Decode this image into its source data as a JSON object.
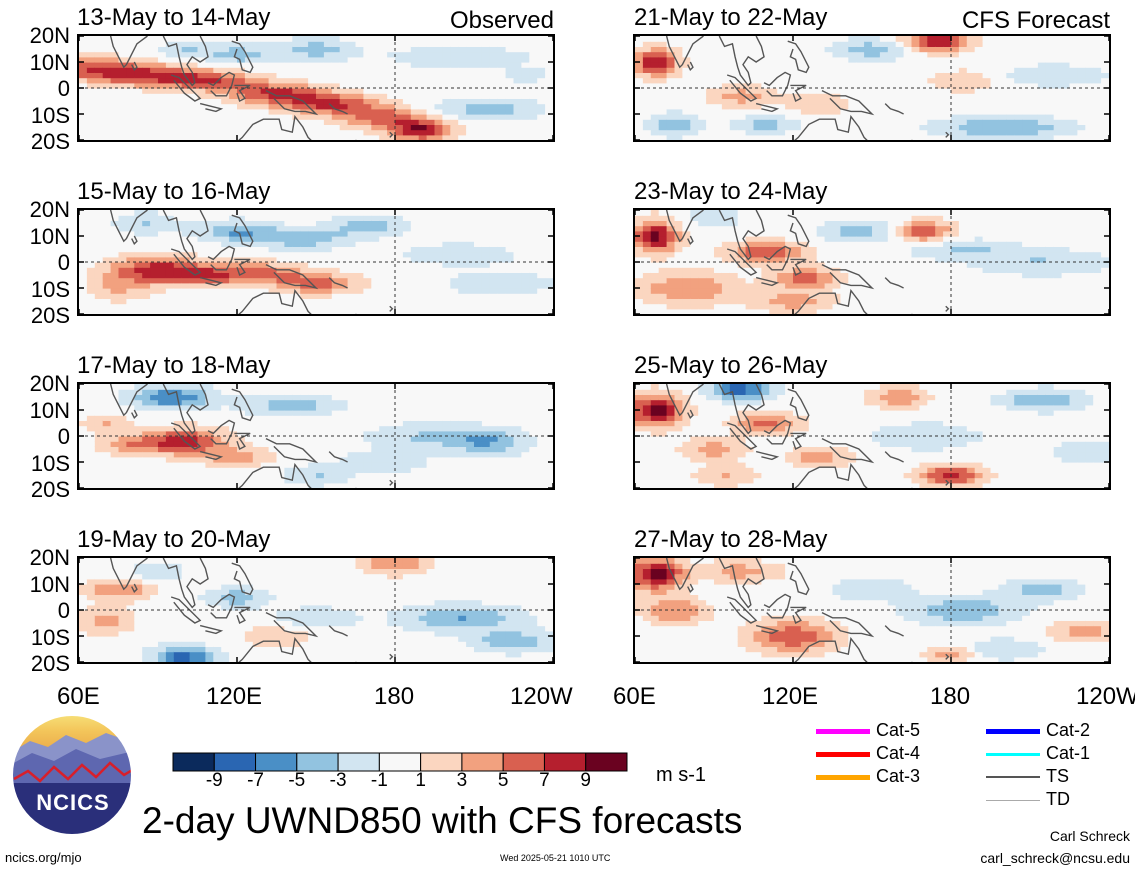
{
  "panel_titles": [
    "13-May to 14-May",
    "21-May to 22-May",
    "15-May to 16-May",
    "23-May to 24-May",
    "17-May to 18-May",
    "25-May to 26-May",
    "19-May to 20-May",
    "27-May to 28-May"
  ],
  "labels": {
    "observed": "Observed",
    "forecast": "CFS Forecast"
  },
  "main_title": "2-day UWND850 with CFS forecasts",
  "units": "m s-1",
  "url": "ncics.org/mjo",
  "timestamp": "Wed 2025-05-21 1010 UTC",
  "author": "Carl Schreck",
  "email": "carl_schreck@ncsu.edu",
  "logo_text": "NCICS",
  "legend": [
    {
      "label": "Cat-5",
      "color": "#ff00ff"
    },
    {
      "label": "Cat-4",
      "color": "#ff0000"
    },
    {
      "label": "Cat-3",
      "color": "#ffa500"
    },
    {
      "label": "Cat-2",
      "color": "#0000ff"
    },
    {
      "label": "Cat-1",
      "color": "#00ffff"
    },
    {
      "label": "TS",
      "color": "#555555"
    },
    {
      "label": "TD",
      "color": "#aaaaaa"
    }
  ],
  "chart_data": {
    "type": "heatmap",
    "variable": "UWND850",
    "y_tick_labels": [
      "20N",
      "10N",
      "0",
      "10S",
      "20S"
    ],
    "x_tick_labels": [
      "60E",
      "120E",
      "180",
      "120W"
    ],
    "xlim": [
      60,
      240
    ],
    "ylim": [
      -20,
      20
    ],
    "colorbar": {
      "ticks": [
        "-9",
        "-7",
        "-5",
        "-3",
        "-1",
        "1",
        "3",
        "5",
        "7",
        "9"
      ],
      "colors": [
        "#0b2a5c",
        "#2a66b2",
        "#4a8fc6",
        "#92c3e0",
        "#d2e5f1",
        "#f8f8f8",
        "#fbd6c0",
        "#f2a17f",
        "#d96050",
        "#b51f2e",
        "#6a0220"
      ]
    },
    "panels": [
      {
        "period": "13-May to 14-May",
        "source": "Observed",
        "blobs": [
          [
            65,
            8,
            18,
            4,
            6
          ],
          [
            85,
            5,
            20,
            4,
            7
          ],
          [
            110,
            3,
            18,
            4,
            6
          ],
          [
            135,
            -2,
            18,
            4,
            7
          ],
          [
            155,
            -6,
            18,
            4,
            7
          ],
          [
            175,
            -11,
            16,
            4,
            6
          ],
          [
            190,
            -16,
            12,
            4,
            9
          ],
          [
            120,
            13,
            12,
            4,
            -4
          ],
          [
            100,
            15,
            10,
            3,
            -3
          ],
          [
            150,
            15,
            15,
            4,
            -4
          ],
          [
            205,
            12,
            25,
            4,
            -3
          ],
          [
            215,
            -8,
            20,
            4,
            -4
          ],
          [
            230,
            5,
            10,
            3,
            -2
          ]
        ]
      },
      {
        "period": "15-May to 16-May",
        "source": "Observed",
        "blobs": [
          [
            90,
            -3,
            18,
            5,
            8
          ],
          [
            110,
            -5,
            15,
            4,
            5
          ],
          [
            130,
            -4,
            15,
            4,
            5
          ],
          [
            150,
            -8,
            15,
            4,
            6
          ],
          [
            75,
            -10,
            12,
            5,
            3
          ],
          [
            120,
            12,
            15,
            4,
            -5
          ],
          [
            145,
            9,
            18,
            4,
            -4
          ],
          [
            170,
            14,
            15,
            4,
            -4
          ],
          [
            205,
            3,
            20,
            4,
            -3
          ],
          [
            220,
            -8,
            20,
            4,
            -3
          ],
          [
            85,
            15,
            12,
            4,
            -3
          ]
        ]
      },
      {
        "period": "17-May to 18-May",
        "source": "Observed",
        "blobs": [
          [
            100,
            -2,
            15,
            5,
            8
          ],
          [
            80,
            -3,
            12,
            4,
            4
          ],
          [
            120,
            -8,
            12,
            4,
            4
          ],
          [
            95,
            15,
            15,
            4,
            -7
          ],
          [
            140,
            12,
            18,
            4,
            -4
          ],
          [
            190,
            0,
            20,
            5,
            -3
          ],
          [
            215,
            -2,
            15,
            5,
            -5
          ],
          [
            175,
            -10,
            15,
            4,
            -3
          ],
          [
            150,
            -15,
            12,
            4,
            -3
          ],
          [
            70,
            5,
            10,
            3,
            3
          ]
        ]
      },
      {
        "period": "19-May to 20-May",
        "source": "Observed",
        "blobs": [
          [
            75,
            8,
            12,
            4,
            5
          ],
          [
            70,
            -4,
            10,
            5,
            4
          ],
          [
            100,
            -18,
            12,
            4,
            -8
          ],
          [
            120,
            5,
            12,
            4,
            -4
          ],
          [
            150,
            -3,
            15,
            4,
            -3
          ],
          [
            180,
            18,
            12,
            4,
            5
          ],
          [
            205,
            -3,
            22,
            5,
            -5
          ],
          [
            225,
            -12,
            15,
            4,
            -5
          ],
          [
            135,
            -10,
            12,
            4,
            3
          ],
          [
            90,
            15,
            10,
            3,
            -3
          ]
        ]
      },
      {
        "period": "21-May to 22-May",
        "source": "CFS Forecast",
        "blobs": [
          [
            68,
            10,
            8,
            5,
            9
          ],
          [
            100,
            -3,
            12,
            4,
            4
          ],
          [
            130,
            -6,
            12,
            4,
            3
          ],
          [
            175,
            18,
            12,
            4,
            9
          ],
          [
            75,
            -14,
            10,
            4,
            -5
          ],
          [
            110,
            -14,
            12,
            3,
            -4
          ],
          [
            150,
            15,
            15,
            4,
            -4
          ],
          [
            200,
            -15,
            25,
            4,
            -5
          ],
          [
            220,
            5,
            20,
            4,
            -3
          ],
          [
            185,
            3,
            12,
            4,
            3
          ]
        ]
      },
      {
        "period": "23-May to 24-May",
        "source": "CFS Forecast",
        "blobs": [
          [
            68,
            10,
            8,
            6,
            10
          ],
          [
            110,
            4,
            14,
            4,
            7
          ],
          [
            125,
            -6,
            12,
            4,
            6
          ],
          [
            80,
            -10,
            18,
            6,
            5
          ],
          [
            170,
            12,
            10,
            4,
            7
          ],
          [
            120,
            -15,
            15,
            4,
            4
          ],
          [
            145,
            12,
            15,
            4,
            -4
          ],
          [
            185,
            5,
            20,
            4,
            -3
          ],
          [
            215,
            0,
            25,
            5,
            -3
          ],
          [
            90,
            17,
            10,
            3,
            -3
          ]
        ]
      },
      {
        "period": "25-May to 26-May",
        "source": "CFS Forecast",
        "blobs": [
          [
            68,
            10,
            10,
            6,
            10
          ],
          [
            100,
            18,
            12,
            4,
            -8
          ],
          [
            110,
            5,
            12,
            4,
            6
          ],
          [
            90,
            -5,
            12,
            4,
            4
          ],
          [
            130,
            -8,
            12,
            4,
            4
          ],
          [
            160,
            15,
            10,
            4,
            5
          ],
          [
            180,
            -15,
            12,
            4,
            8
          ],
          [
            215,
            14,
            15,
            4,
            -5
          ],
          [
            170,
            0,
            20,
            5,
            -3
          ],
          [
            230,
            -6,
            12,
            4,
            -3
          ],
          [
            95,
            -15,
            12,
            4,
            3
          ]
        ]
      },
      {
        "period": "27-May to 28-May",
        "source": "CFS Forecast",
        "blobs": [
          [
            68,
            14,
            10,
            6,
            10
          ],
          [
            75,
            0,
            12,
            5,
            5
          ],
          [
            120,
            -10,
            15,
            6,
            7
          ],
          [
            100,
            15,
            15,
            4,
            4
          ],
          [
            185,
            0,
            20,
            5,
            -5
          ],
          [
            150,
            8,
            15,
            4,
            -3
          ],
          [
            215,
            8,
            15,
            4,
            -4
          ],
          [
            230,
            -8,
            12,
            4,
            4
          ],
          [
            200,
            -15,
            15,
            4,
            -3
          ],
          [
            180,
            -17,
            10,
            3,
            4
          ]
        ]
      }
    ]
  }
}
